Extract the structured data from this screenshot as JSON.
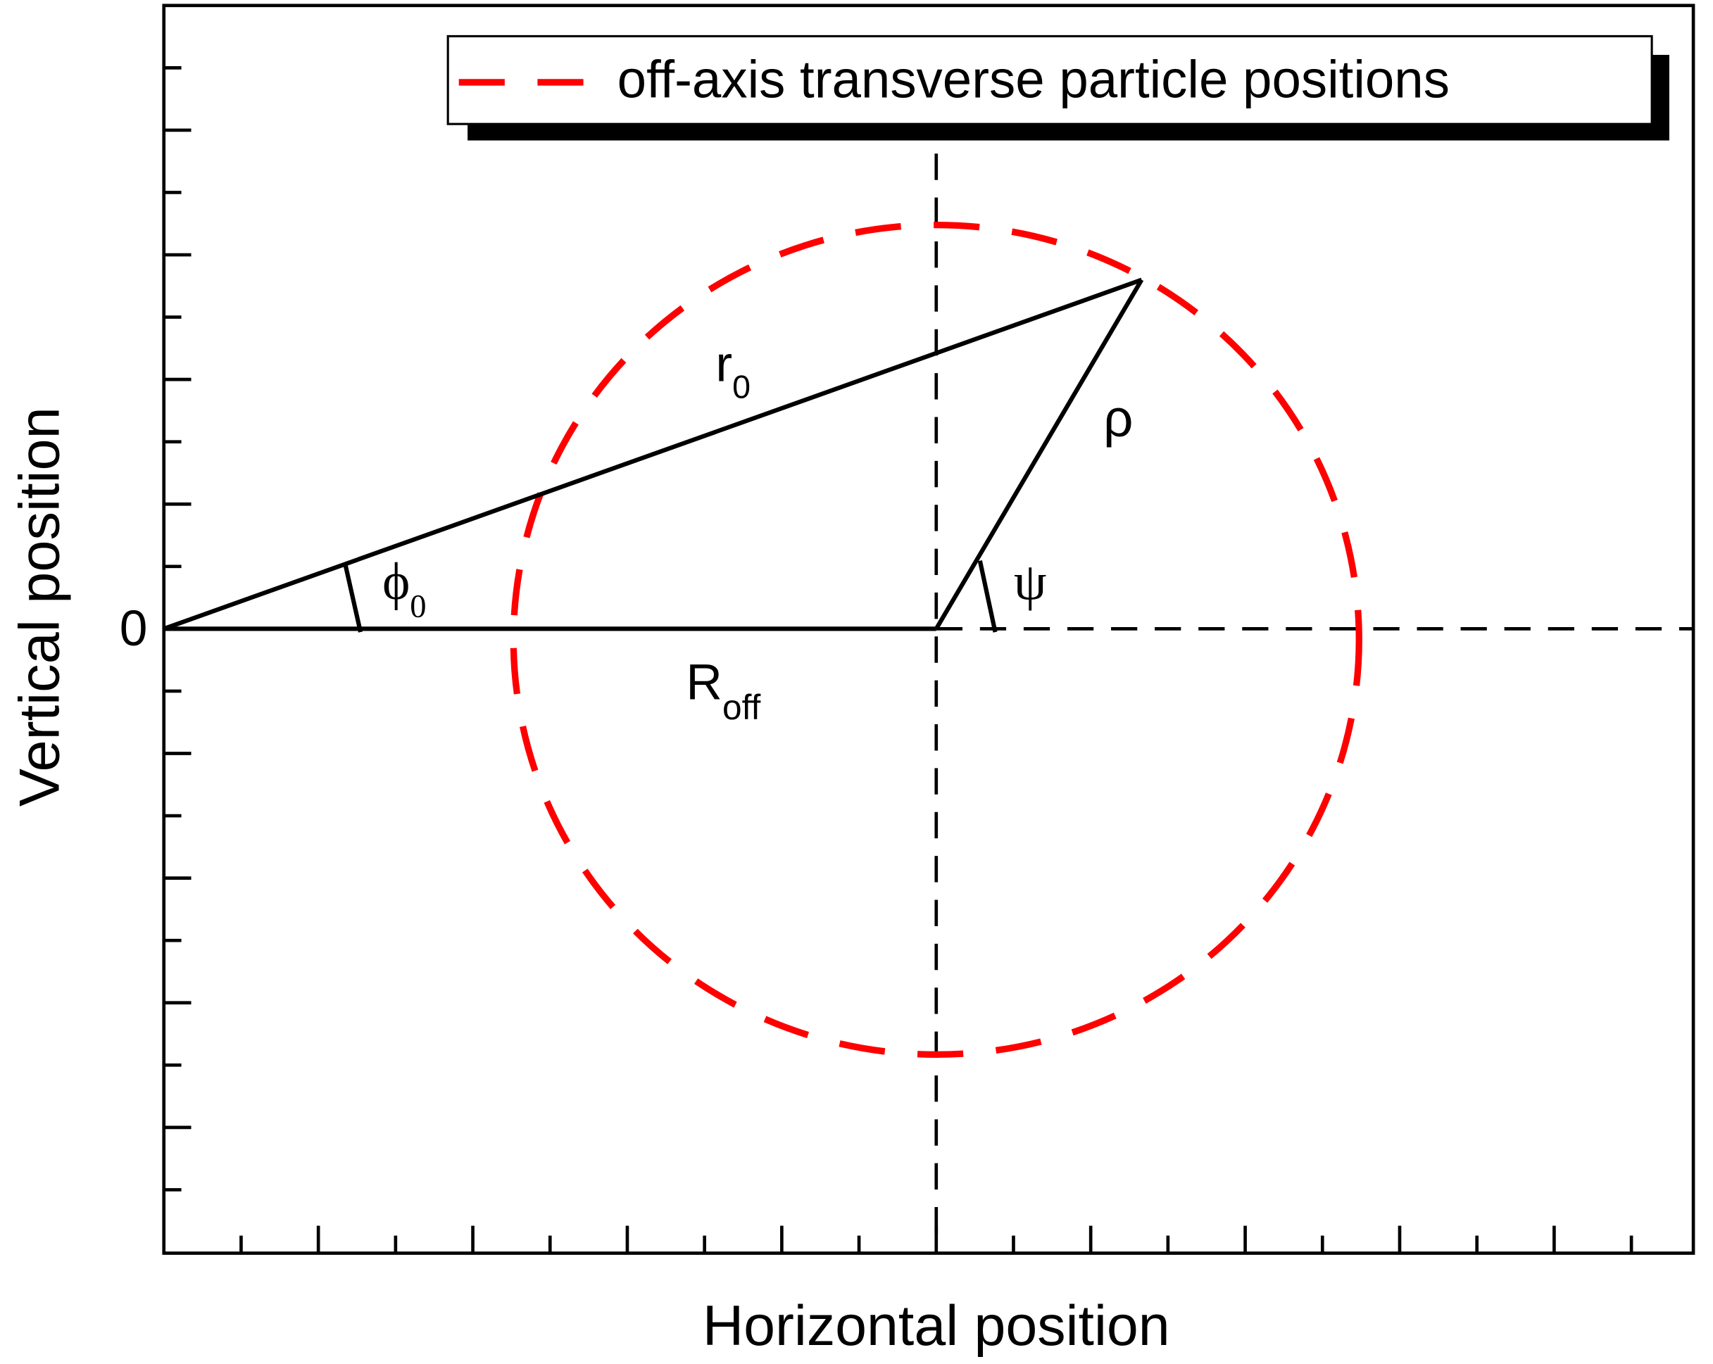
{
  "legend": {
    "label": "off-axis transverse particle positions"
  },
  "axes": {
    "x_label": "Horizontal position",
    "y_label": "Vertical position",
    "y_origin_label": "0"
  },
  "annotations": {
    "r0": {
      "text": "r",
      "subscript": "0"
    },
    "rho": {
      "text": "ρ"
    },
    "psi": {
      "text": "ψ"
    },
    "phi0": {
      "text": "ϕ",
      "subscript": "0"
    },
    "r_off": {
      "text": "R",
      "subscript": "off"
    }
  }
}
